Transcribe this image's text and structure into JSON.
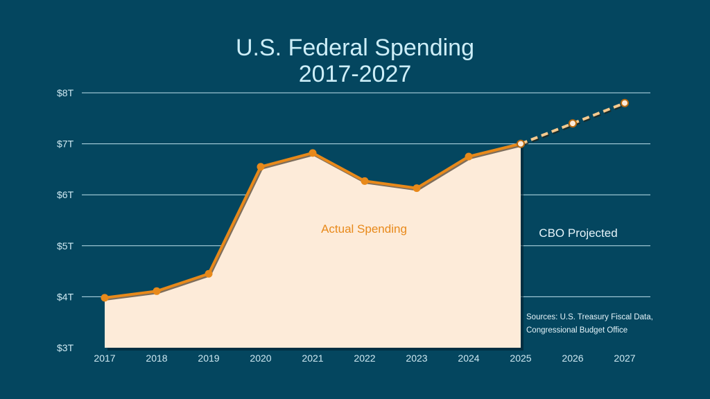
{
  "title_line1": "U.S. Federal Spending",
  "title_line2": "2017-2027",
  "colors": {
    "background": "#04465f",
    "grid": "#bfe3ee",
    "area_fill": "#fdebd9",
    "actual_line": "#e8891a",
    "projected_line": "#f5c98e"
  },
  "chart_data": {
    "type": "line",
    "title": "U.S. Federal Spending 2017-2027",
    "x": [
      "2017",
      "2018",
      "2019",
      "2020",
      "2021",
      "2022",
      "2023",
      "2024",
      "2025",
      "2026",
      "2027"
    ],
    "y_ticks": [
      "$3T",
      "$4T",
      "$5T",
      "$6T",
      "$7T",
      "$8T"
    ],
    "ylim": [
      3,
      8
    ],
    "grid": true,
    "series": [
      {
        "name": "Actual Spending",
        "x": [
          "2017",
          "2018",
          "2019",
          "2020",
          "2021",
          "2022",
          "2023",
          "2024",
          "2025"
        ],
        "values": [
          3.98,
          4.11,
          4.45,
          6.55,
          6.82,
          6.27,
          6.13,
          6.75,
          7.0
        ],
        "style": "solid, filled area"
      },
      {
        "name": "CBO Projected",
        "x": [
          "2025",
          "2026",
          "2027"
        ],
        "values": [
          7.0,
          7.4,
          7.8
        ],
        "style": "dashed, open markers"
      }
    ],
    "annotations": {
      "actual_label": "Actual Spending",
      "projected_label": "CBO Projected",
      "sources_line1": "Sources: U.S. Treasury Fiscal Data,",
      "sources_line2": "Congressional Budget Office"
    }
  }
}
